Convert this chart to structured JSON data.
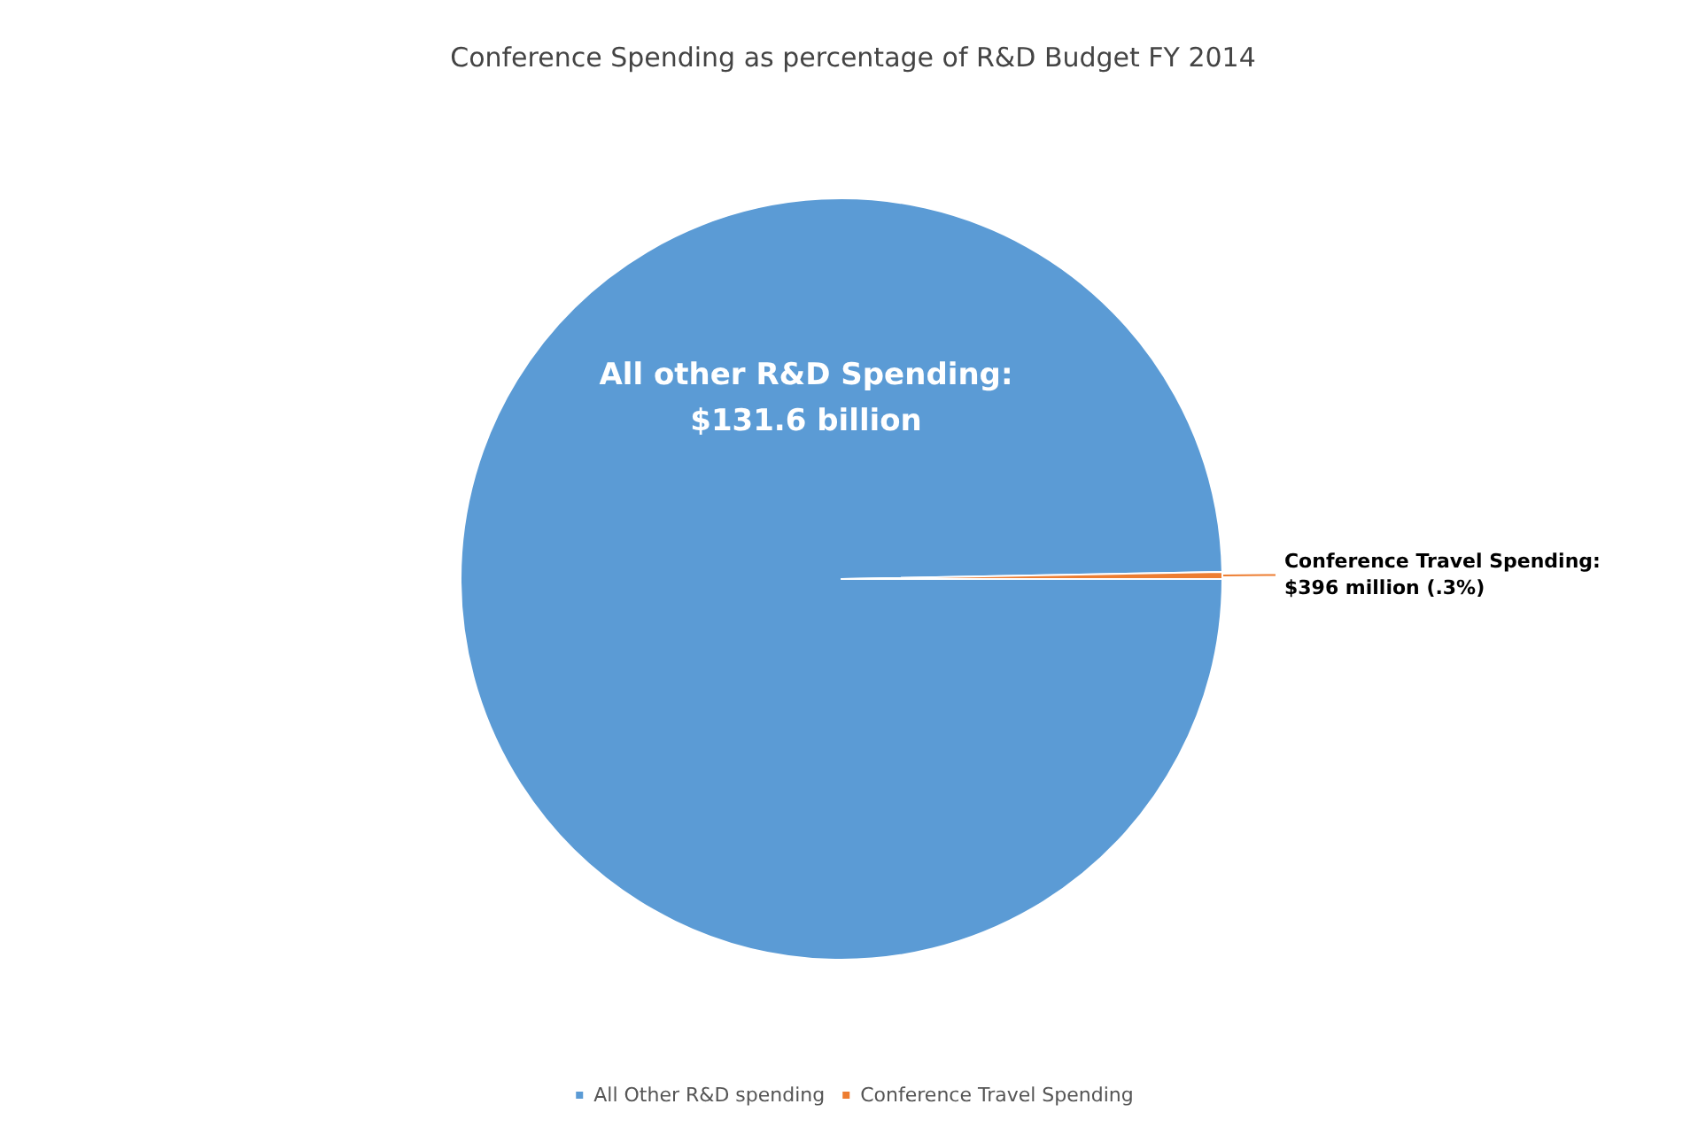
{
  "chart_data": {
    "type": "pie",
    "title": "Conference Spending as percentage of R&D Budget FY 2014",
    "categories": [
      "All Other R&D spending",
      "Conference Travel Spending"
    ],
    "values": [
      99.7,
      0.3
    ],
    "colors": [
      "#5b9bd5",
      "#ed7d31"
    ],
    "value_labels": [
      null,
      "Conference Travel Spending:\n$396 million (.3%)"
    ],
    "annotations": [
      "All other R&D Spending:\n$131.6 billion"
    ],
    "legend": "bottom"
  }
}
